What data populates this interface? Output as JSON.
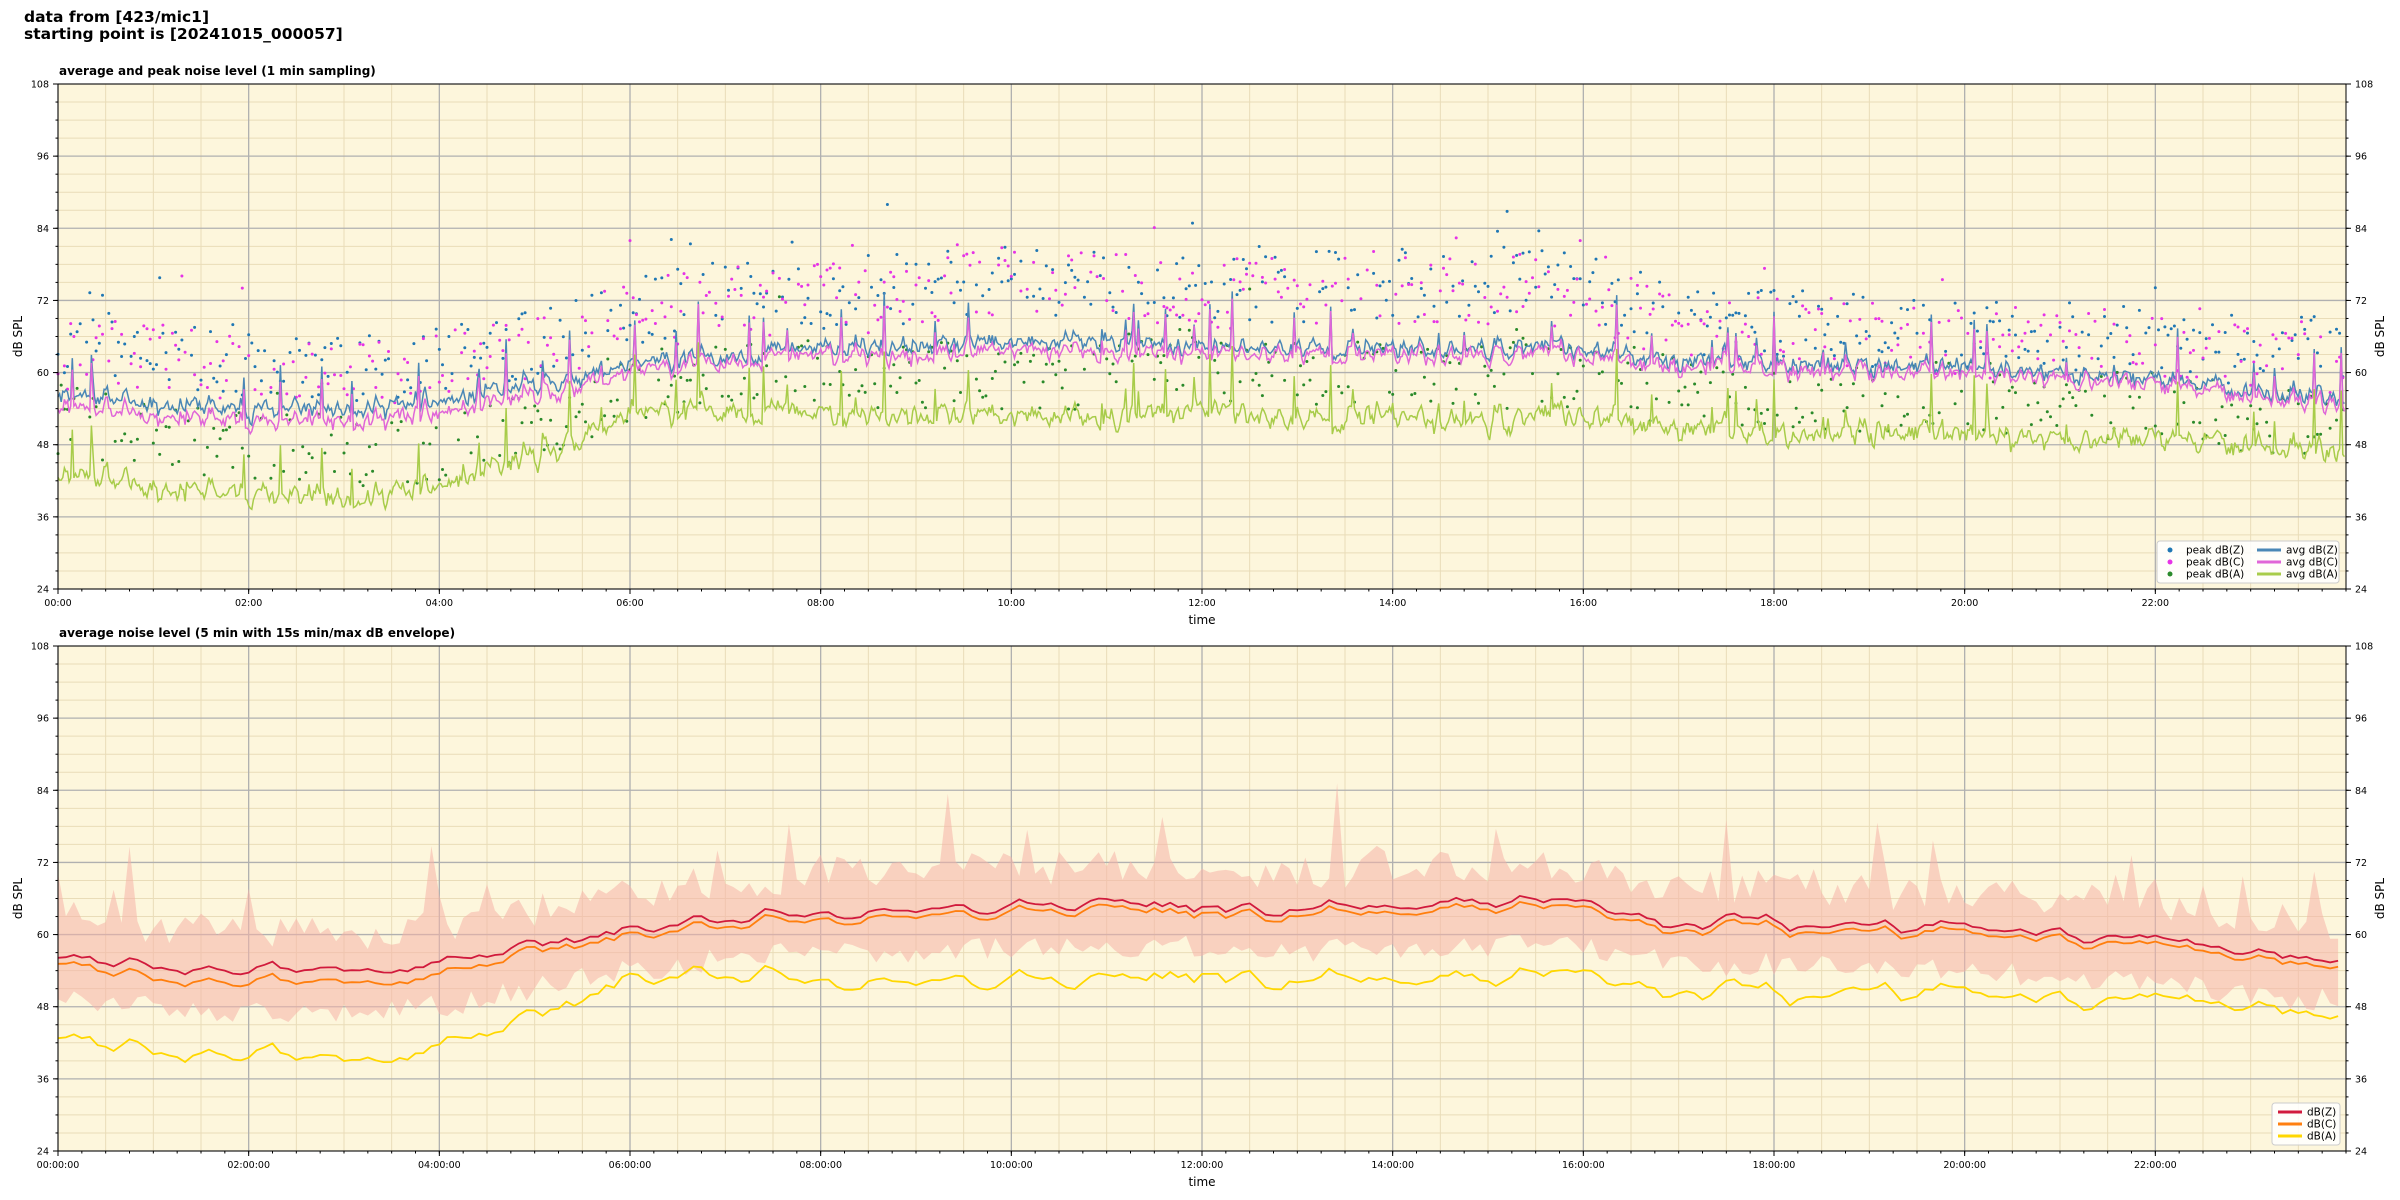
{
  "header": {
    "line1": "data from [423/mic1]",
    "line2": "starting point is [20241015_000057]"
  },
  "chart_data": [
    {
      "type": "line",
      "title": "average and peak noise level (1 min sampling)",
      "xlabel": "time",
      "ylabel": "dB SPL",
      "ylim": [
        24,
        108
      ],
      "yticks": [
        24,
        36,
        48,
        60,
        72,
        84,
        96,
        108
      ],
      "xlim_hours": [
        0,
        24
      ],
      "xticks": [
        "00:00",
        "02:00",
        "04:00",
        "06:00",
        "08:00",
        "10:00",
        "12:00",
        "14:00",
        "16:00",
        "18:00",
        "20:00",
        "22:00"
      ],
      "grid": true,
      "legend_position": "bottom-right",
      "background": "#fdf6dc",
      "series": [
        {
          "name": "peak dB(Z)",
          "kind": "scatter",
          "color": "#1f77b4",
          "time_hours": [
            0,
            1,
            2,
            3,
            4,
            5,
            6,
            7,
            8,
            9,
            10,
            11,
            12,
            13,
            14,
            15,
            16,
            17,
            18,
            19,
            20,
            21,
            22,
            23,
            24
          ],
          "values": [
            64,
            64,
            62,
            61,
            62,
            65,
            70,
            73,
            73,
            74,
            76,
            75,
            74,
            74,
            75,
            75,
            74,
            69,
            68,
            67,
            66,
            66,
            65,
            64,
            63
          ]
        },
        {
          "name": "peak dB(C)",
          "kind": "scatter",
          "color": "#e633e6",
          "time_hours": [
            0,
            1,
            2,
            3,
            4,
            5,
            6,
            7,
            8,
            9,
            10,
            11,
            12,
            13,
            14,
            15,
            16,
            17,
            18,
            19,
            20,
            21,
            22,
            23,
            24
          ],
          "values": [
            63,
            63,
            61,
            60,
            61,
            64,
            69,
            72,
            72,
            73,
            75,
            74,
            73,
            73,
            74,
            74,
            73,
            68,
            67,
            66,
            65,
            65,
            64,
            63,
            62
          ]
        },
        {
          "name": "peak dB(A)",
          "kind": "scatter",
          "color": "#2a8a2a",
          "time_hours": [
            0,
            1,
            2,
            3,
            4,
            5,
            6,
            7,
            8,
            9,
            10,
            11,
            12,
            13,
            14,
            15,
            16,
            17,
            18,
            19,
            20,
            21,
            22,
            23,
            24
          ],
          "values": [
            52,
            50,
            48,
            47,
            47,
            51,
            58,
            60,
            60,
            59,
            60,
            59,
            60,
            59,
            60,
            60,
            60,
            57,
            56,
            56,
            56,
            55,
            54,
            52,
            51
          ]
        },
        {
          "name": "avg dB(Z)",
          "kind": "line",
          "color": "#4a87b6",
          "time_hours": [
            0,
            1,
            2,
            3,
            4,
            5,
            6,
            7,
            8,
            9,
            10,
            11,
            12,
            13,
            14,
            15,
            16,
            17,
            18,
            19,
            20,
            21,
            22,
            23,
            24
          ],
          "values": [
            57,
            55,
            54,
            54,
            55,
            58,
            61,
            63,
            64,
            64,
            65,
            65,
            64,
            64,
            64,
            64,
            64,
            62,
            62,
            61,
            61,
            60,
            59,
            57,
            56
          ]
        },
        {
          "name": "avg dB(C)",
          "kind": "line",
          "color": "#e066d8",
          "time_hours": [
            0,
            1,
            2,
            3,
            4,
            5,
            6,
            7,
            8,
            9,
            10,
            11,
            12,
            13,
            14,
            15,
            16,
            17,
            18,
            19,
            20,
            21,
            22,
            23,
            24
          ],
          "values": [
            55,
            53,
            52,
            52,
            53,
            56,
            60,
            62,
            63,
            62,
            64,
            63,
            63,
            63,
            63,
            63,
            63,
            61,
            61,
            60,
            60,
            59,
            58,
            56,
            55
          ]
        },
        {
          "name": "avg dB(A)",
          "kind": "line",
          "color": "#a8cc4a",
          "time_hours": [
            0,
            1,
            2,
            3,
            4,
            5,
            6,
            7,
            8,
            9,
            10,
            11,
            12,
            13,
            14,
            15,
            16,
            17,
            18,
            19,
            20,
            21,
            22,
            23,
            24
          ],
          "values": [
            44,
            41,
            40,
            39,
            41,
            46,
            53,
            54,
            53,
            52,
            53,
            52,
            54,
            52,
            53,
            52,
            53,
            51,
            50,
            50,
            50,
            49,
            49,
            48,
            47
          ]
        }
      ]
    },
    {
      "type": "line",
      "title": "average noise level (5 min with 15s min/max dB envelope)",
      "xlabel": "time",
      "ylabel": "dB SPL",
      "ylim": [
        24,
        108
      ],
      "yticks": [
        24,
        36,
        48,
        60,
        72,
        84,
        96,
        108
      ],
      "xlim_hours": [
        0,
        24
      ],
      "xticks": [
        "00:00:00",
        "02:00:00",
        "04:00:00",
        "06:00:00",
        "08:00:00",
        "10:00:00",
        "12:00:00",
        "14:00:00",
        "16:00:00",
        "18:00:00",
        "20:00:00",
        "22:00:00"
      ],
      "grid": true,
      "legend_position": "bottom-right",
      "background": "#fdf6dc",
      "envelope_color": "#f5b3a8",
      "series": [
        {
          "name": "dB(Z)",
          "color": "#d11a3c",
          "time_hours": [
            0,
            1,
            2,
            3,
            4,
            5,
            6,
            7,
            8,
            9,
            10,
            11,
            12,
            13,
            14,
            15,
            16,
            17,
            18,
            19,
            20,
            21,
            22,
            23,
            24
          ],
          "values": [
            57,
            55,
            54,
            54,
            55,
            58,
            61,
            63,
            64,
            64,
            65,
            65,
            65,
            64,
            65,
            65,
            65,
            62,
            62,
            61,
            61,
            60,
            59,
            57,
            56
          ]
        },
        {
          "name": "dB(C)",
          "color": "#ff7f0e",
          "time_hours": [
            0,
            1,
            2,
            3,
            4,
            5,
            6,
            7,
            8,
            9,
            10,
            11,
            12,
            13,
            14,
            15,
            16,
            17,
            18,
            19,
            20,
            21,
            22,
            23,
            24
          ],
          "values": [
            56,
            53,
            52,
            52,
            53,
            57,
            60,
            62,
            63,
            63,
            64,
            64,
            64,
            63,
            64,
            64,
            64,
            61,
            61,
            60,
            60,
            59,
            58,
            56,
            55
          ]
        },
        {
          "name": "dB(A)",
          "color": "#ffd700",
          "time_hours": [
            0,
            1,
            2,
            3,
            4,
            5,
            6,
            7,
            8,
            9,
            10,
            11,
            12,
            13,
            14,
            15,
            16,
            17,
            18,
            19,
            20,
            21,
            22,
            23,
            24
          ],
          "values": [
            44,
            41,
            40,
            39,
            41,
            46,
            53,
            54,
            53,
            52,
            53,
            52,
            54,
            52,
            53,
            52,
            53,
            51,
            50,
            50,
            50,
            49,
            49,
            48,
            47
          ]
        }
      ]
    }
  ]
}
